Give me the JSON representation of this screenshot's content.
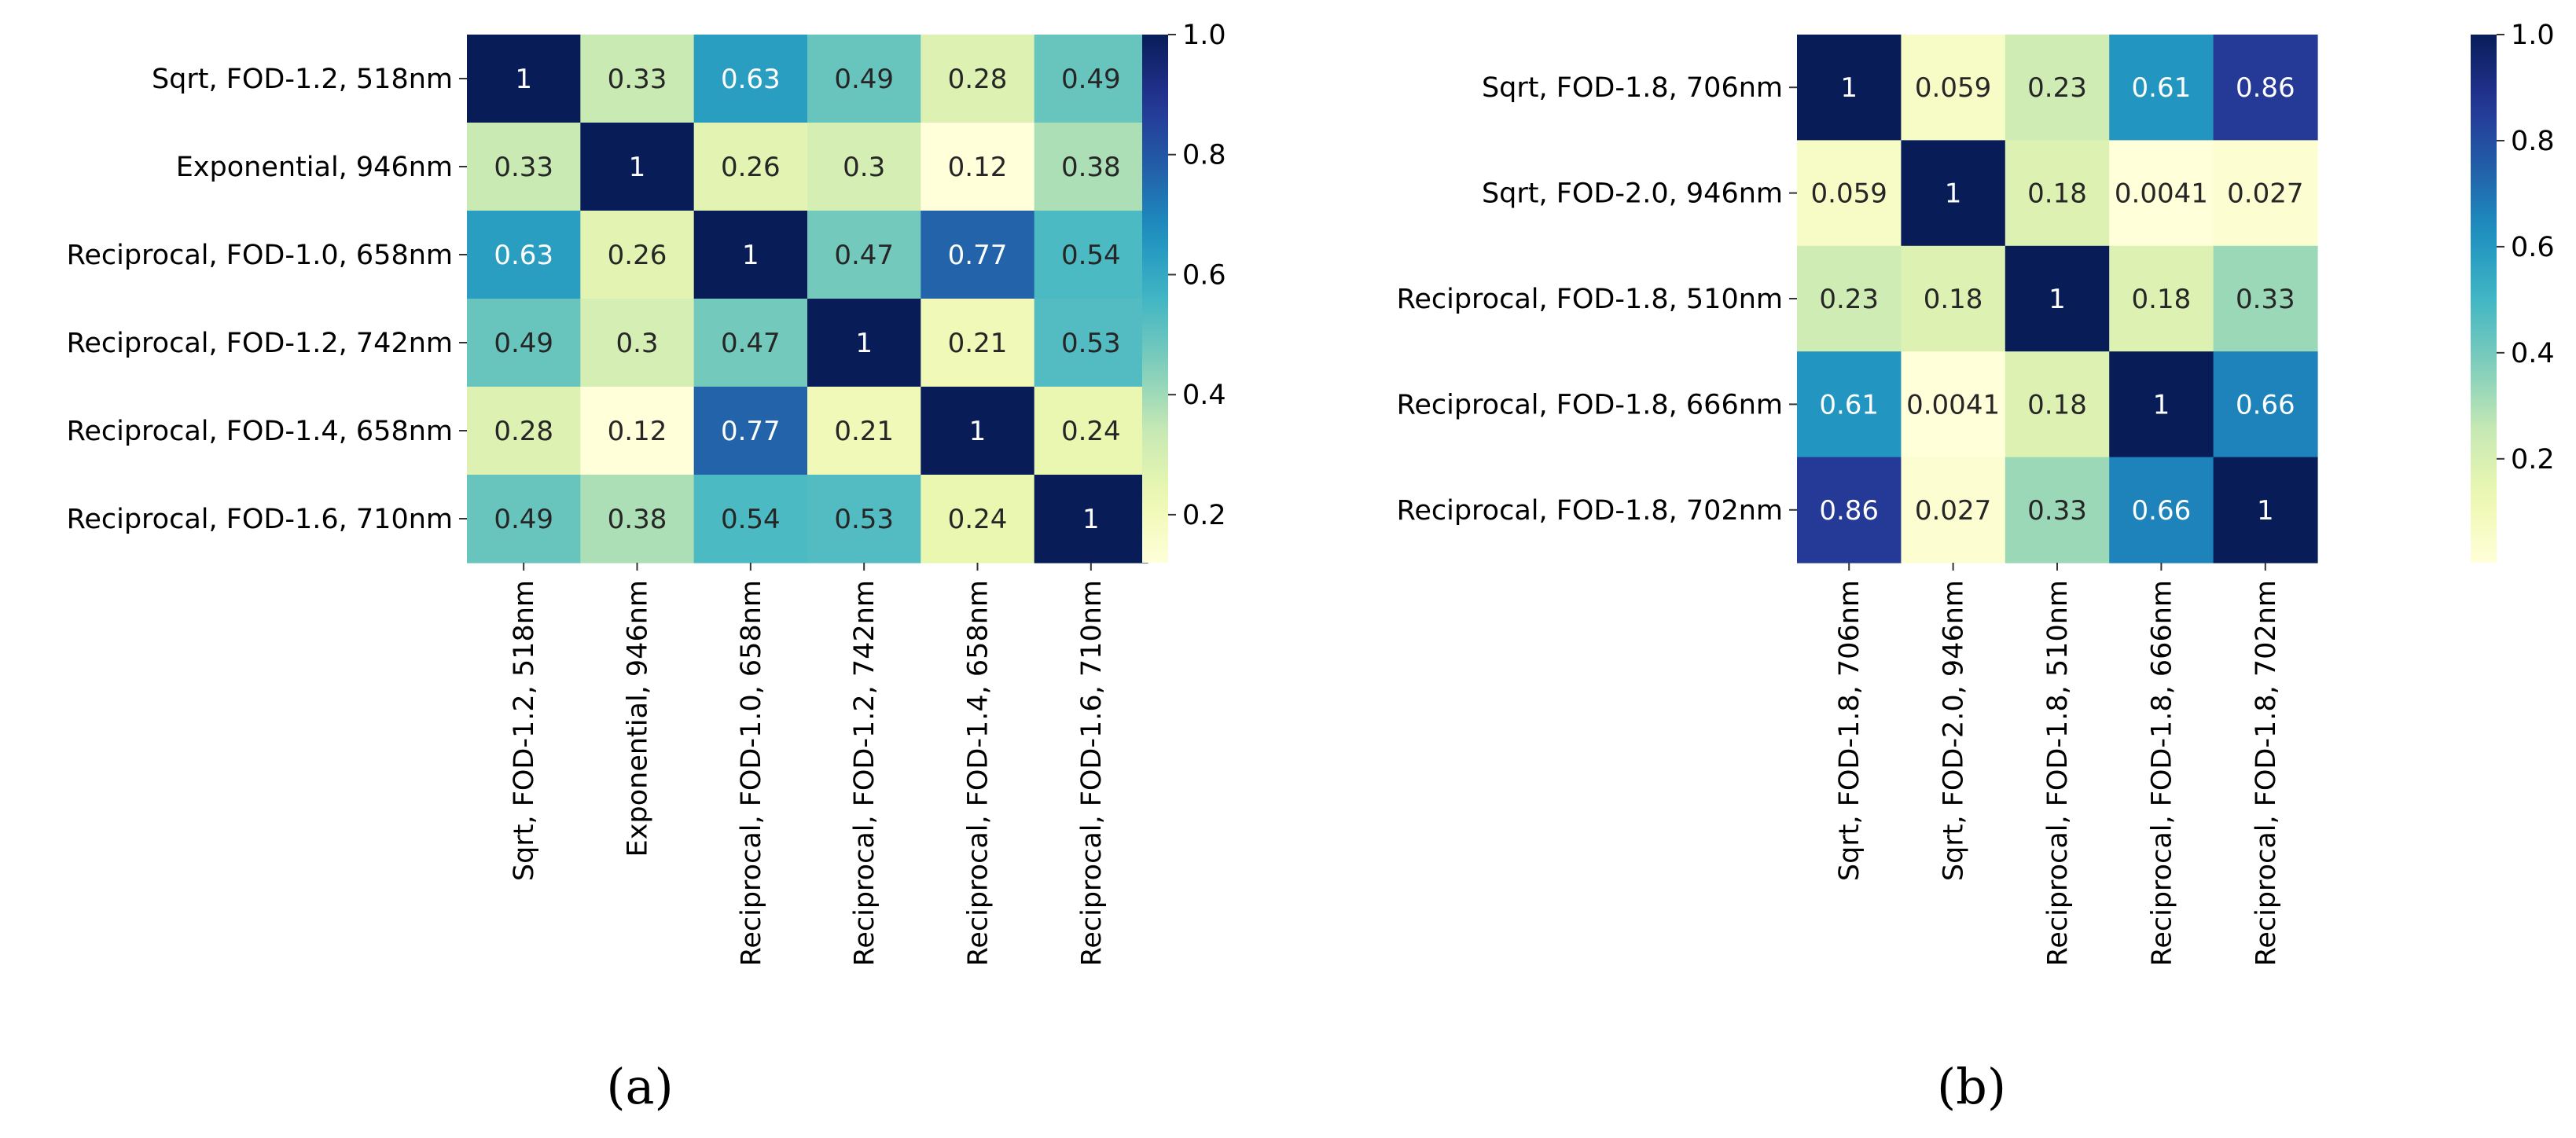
{
  "figure": {
    "panel_labels": [
      "(a)",
      "(b)"
    ]
  },
  "colors": {
    "cmap_name": "YlGnBu",
    "low": "#ffffd9",
    "high": "#081d58",
    "background": "#ffffff"
  },
  "chart_data": [
    {
      "type": "heatmap",
      "panel": "(a)",
      "labels": [
        "Sqrt, FOD-1.2, 518nm",
        "Exponential, 946nm",
        "Reciprocal, FOD-1.0, 658nm",
        "Reciprocal, FOD-1.2, 742nm",
        "Reciprocal, FOD-1.4, 658nm",
        "Reciprocal, FOD-1.6, 710nm"
      ],
      "values": [
        [
          1,
          0.33,
          0.63,
          0.49,
          0.28,
          0.49
        ],
        [
          0.33,
          1,
          0.26,
          0.3,
          0.12,
          0.38
        ],
        [
          0.63,
          0.26,
          1,
          0.47,
          0.77,
          0.54
        ],
        [
          0.49,
          0.3,
          0.47,
          1,
          0.21,
          0.53
        ],
        [
          0.28,
          0.12,
          0.77,
          0.21,
          1,
          0.24
        ],
        [
          0.49,
          0.38,
          0.54,
          0.53,
          0.24,
          1
        ]
      ],
      "colorbar": {
        "min": 0.12,
        "max": 1.0,
        "ticks": [
          0.2,
          0.4,
          0.6,
          0.8,
          1.0
        ],
        "tick_labels": [
          "0.2",
          "0.4",
          "0.6",
          "0.8",
          "1.0"
        ]
      }
    },
    {
      "type": "heatmap",
      "panel": "(b)",
      "labels": [
        "Sqrt, FOD-1.8, 706nm",
        "Sqrt, FOD-2.0, 946nm",
        "Reciprocal, FOD-1.8, 510nm",
        "Reciprocal, FOD-1.8, 666nm",
        "Reciprocal, FOD-1.8, 702nm"
      ],
      "values": [
        [
          1,
          0.059,
          0.23,
          0.61,
          0.86
        ],
        [
          0.059,
          1,
          0.18,
          0.0041,
          0.027
        ],
        [
          0.23,
          0.18,
          1,
          0.18,
          0.33
        ],
        [
          0.61,
          0.0041,
          0.18,
          1,
          0.66
        ],
        [
          0.86,
          0.027,
          0.33,
          0.66,
          1
        ]
      ],
      "colorbar": {
        "min": 0.0041,
        "max": 1.0,
        "ticks": [
          0.2,
          0.4,
          0.6,
          0.8,
          1.0
        ],
        "tick_labels": [
          "0.2",
          "0.4",
          "0.6",
          "0.8",
          "1.0"
        ]
      }
    }
  ]
}
